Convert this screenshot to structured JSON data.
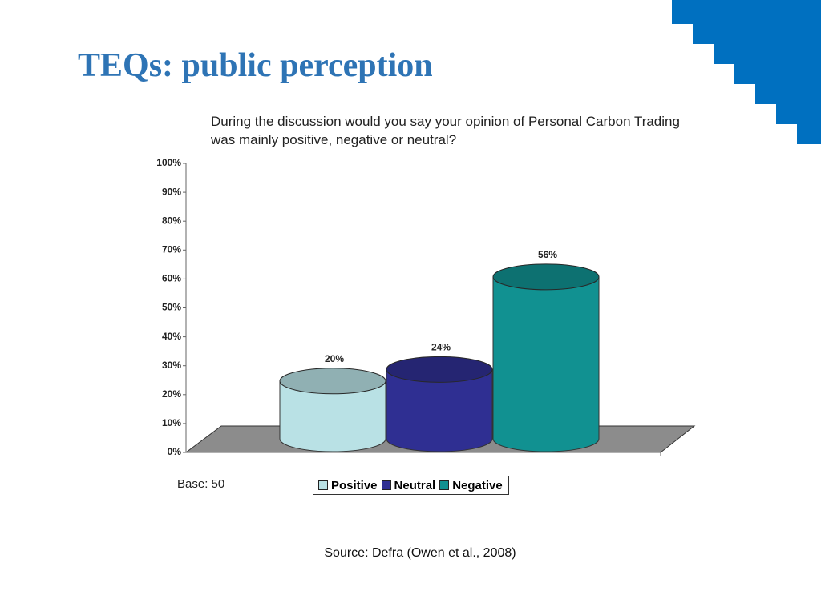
{
  "slide_title": "TEQs: public perception",
  "source": "Source: Defra (Owen et al., 2008)",
  "chart_data": {
    "type": "cylinder",
    "title": "During the discussion would you say your opinion of Personal Carbon Trading was mainly positive, negative or neutral?",
    "note": "Base: 50",
    "series": [
      {
        "name": "Positive",
        "color": "#b9e1e5",
        "values": [
          20
        ],
        "value_labels": [
          "20%"
        ]
      },
      {
        "name": "Neutral",
        "color": "#2f2f92",
        "values": [
          24
        ],
        "value_labels": [
          "24%"
        ]
      },
      {
        "name": "Negative",
        "color": "#119191",
        "values": [
          56
        ],
        "value_labels": [
          "56%"
        ]
      }
    ],
    "ylim": [
      0,
      100
    ],
    "yticks": [
      {
        "value": 0,
        "label": "0%"
      },
      {
        "value": 10,
        "label": "10%"
      },
      {
        "value": 20,
        "label": "20%"
      },
      {
        "value": 30,
        "label": "30%"
      },
      {
        "value": 40,
        "label": "40%"
      },
      {
        "value": 50,
        "label": "50%"
      },
      {
        "value": 60,
        "label": "60%"
      },
      {
        "value": 70,
        "label": "70%"
      },
      {
        "value": 80,
        "label": "80%"
      },
      {
        "value": 90,
        "label": "90%"
      },
      {
        "value": 100,
        "label": "100%"
      }
    ],
    "legend": "bottom"
  }
}
